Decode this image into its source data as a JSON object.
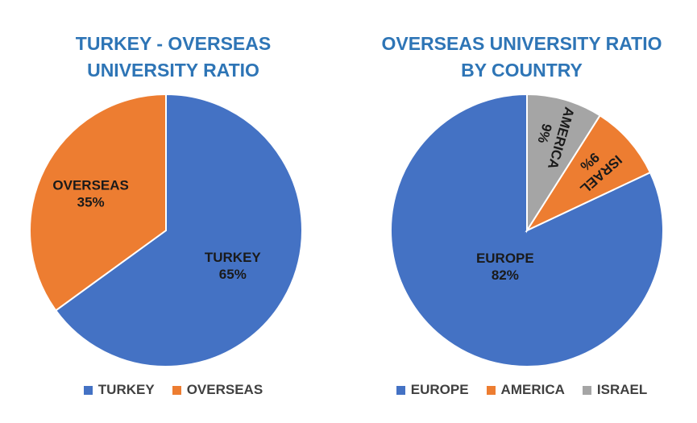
{
  "chart_data": [
    {
      "type": "pie",
      "title": [
        "TURKEY - OVERSEAS",
        "UNIVERSITY RATIO"
      ],
      "categories": [
        "TURKEY",
        "OVERSEAS"
      ],
      "values": [
        65,
        35
      ],
      "value_labels": [
        "65%",
        "35%"
      ],
      "colors": [
        "#4472C4",
        "#ED7D31"
      ],
      "legend": [
        "TURKEY",
        "OVERSEAS"
      ],
      "legend_position": "bottom"
    },
    {
      "type": "pie",
      "title": [
        "OVERSEAS UNIVERSITY RATIO",
        "BY COUNTRY"
      ],
      "categories": [
        "EUROPE",
        "ISRAEL",
        "AMERICA"
      ],
      "values": [
        82,
        9,
        9
      ],
      "value_labels": [
        "82%",
        "9%",
        "9%"
      ],
      "colors": [
        "#4472C4",
        "#ED7D31",
        "#A5A5A5"
      ],
      "legend": [
        "EUROPE",
        "AMERICA",
        "ISRAEL"
      ],
      "legend_colors": [
        "#4472C4",
        "#ED7D31",
        "#A5A5A5"
      ],
      "legend_position": "bottom"
    }
  ]
}
